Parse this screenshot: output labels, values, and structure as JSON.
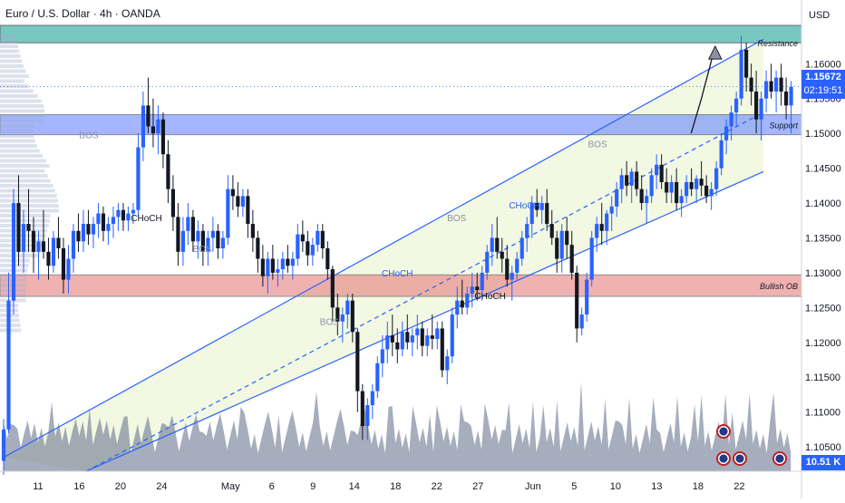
{
  "header": {
    "title": "Euro / U.S. Dollar · 4h · OANDA",
    "currency": "USD"
  },
  "price_tag": {
    "price": "1.15672",
    "countdown": "02:19:51"
  },
  "volume_tag": "10.51 K",
  "colors": {
    "resistance_zone": "#4db6ac",
    "support_zone": "#5b7cff",
    "bullish_ob_zone": "#e57373",
    "channel": "#2962ff",
    "up_candle": "#2962ff",
    "down_candle": "#131722",
    "volume": "#5c6a86",
    "label_blue": "#2962ff",
    "label_gray": "#8a93a6"
  },
  "chart_data": {
    "type": "candlestick",
    "y_axis": {
      "range": [
        1.1015,
        1.1655
      ],
      "ticks": [
        "1.16000",
        "1.15500",
        "1.15000",
        "1.14500",
        "1.14000",
        "1.13500",
        "1.13000",
        "1.12500",
        "1.12000",
        "1.11500",
        "1.11000",
        "1.10500"
      ],
      "tick_values": [
        1.16,
        1.155,
        1.15,
        1.145,
        1.14,
        1.135,
        1.13,
        1.125,
        1.12,
        1.115,
        1.11,
        1.105
      ]
    },
    "x_axis": {
      "ticks": [
        "11",
        "16",
        "20",
        "24",
        "May",
        "6",
        "9",
        "14",
        "18",
        "22",
        "27",
        "Jun",
        "5",
        "10",
        "13",
        "18",
        "22"
      ],
      "tick_bar_index": [
        10,
        22,
        34,
        46,
        66,
        78,
        90,
        102,
        114,
        126,
        138,
        154,
        166,
        178,
        190,
        202,
        214
      ]
    },
    "zones": [
      {
        "name": "Resistance",
        "from": 1.163,
        "to": 1.1655
      },
      {
        "name": "Support",
        "from": 1.1498,
        "to": 1.1527
      },
      {
        "name": "Bullish OB",
        "from": 1.1266,
        "to": 1.1297
      }
    ],
    "channel": {
      "upper": [
        [
          0,
          1.1035
        ],
        [
          221,
          1.1635
        ]
      ],
      "lower": [
        [
          24,
          1.1015
        ],
        [
          221,
          1.1445
        ]
      ],
      "mid_dashed": [
        [
          24,
          1.1015
        ],
        [
          221,
          1.153
        ]
      ]
    },
    "annotations": [
      {
        "text": "BOS",
        "bar": 22,
        "price": 1.1493,
        "style": "gray"
      },
      {
        "text": "CHoCH",
        "bar": 37,
        "price": 1.1374,
        "style": "dark"
      },
      {
        "text": "BOS",
        "bar": 55,
        "price": 1.133,
        "style": "gray"
      },
      {
        "text": "BOS",
        "bar": 92,
        "price": 1.1225,
        "style": "gray"
      },
      {
        "text": "CHoCH",
        "bar": 110,
        "price": 1.1295,
        "style": "blue"
      },
      {
        "text": "BOS",
        "bar": 129,
        "price": 1.1374,
        "style": "gray"
      },
      {
        "text": "CHoCH",
        "bar": 137,
        "price": 1.1262,
        "style": "dark"
      },
      {
        "text": "CHoCH",
        "bar": 147,
        "price": 1.1392,
        "style": "blue"
      },
      {
        "text": "BOS",
        "bar": 170,
        "price": 1.148,
        "style": "gray"
      }
    ],
    "projection": [
      [
        200,
        1.15
      ],
      [
        203,
        1.155
      ],
      [
        207,
        1.1625
      ]
    ],
    "candles": [
      [
        1.103,
        1.109,
        1.101,
        1.1075
      ],
      [
        1.1075,
        1.13,
        1.107,
        1.126
      ],
      [
        1.126,
        1.142,
        1.124,
        1.14
      ],
      [
        1.14,
        1.144,
        1.131,
        1.133
      ],
      [
        1.133,
        1.139,
        1.13,
        1.137
      ],
      [
        1.137,
        1.142,
        1.133,
        1.136
      ],
      [
        1.136,
        1.138,
        1.13,
        1.133
      ],
      [
        1.133,
        1.136,
        1.129,
        1.1345
      ],
      [
        1.1345,
        1.139,
        1.132,
        1.133
      ],
      [
        1.133,
        1.135,
        1.129,
        1.131
      ],
      [
        1.131,
        1.136,
        1.13,
        1.135
      ],
      [
        1.135,
        1.138,
        1.132,
        1.1335
      ],
      [
        1.1335,
        1.135,
        1.127,
        1.129
      ],
      [
        1.129,
        1.134,
        1.127,
        1.132
      ],
      [
        1.132,
        1.137,
        1.13,
        1.136
      ],
      [
        1.136,
        1.1385,
        1.133,
        1.1345
      ],
      [
        1.1345,
        1.139,
        1.133,
        1.137
      ],
      [
        1.137,
        1.139,
        1.134,
        1.1355
      ],
      [
        1.1355,
        1.138,
        1.1335,
        1.137
      ],
      [
        1.137,
        1.14,
        1.135,
        1.1385
      ],
      [
        1.1385,
        1.1395,
        1.1345,
        1.136
      ],
      [
        1.136,
        1.138,
        1.134,
        1.137
      ],
      [
        1.137,
        1.1395,
        1.135,
        1.138
      ],
      [
        1.138,
        1.14,
        1.136,
        1.139
      ],
      [
        1.139,
        1.14,
        1.136,
        1.1375
      ],
      [
        1.1375,
        1.1395,
        1.136,
        1.1385
      ],
      [
        1.1385,
        1.14,
        1.137,
        1.139
      ],
      [
        1.139,
        1.15,
        1.138,
        1.148
      ],
      [
        1.148,
        1.156,
        1.146,
        1.154
      ],
      [
        1.154,
        1.158,
        1.15,
        1.151
      ],
      [
        1.151,
        1.155,
        1.148,
        1.15
      ],
      [
        1.15,
        1.154,
        1.147,
        1.152
      ],
      [
        1.152,
        1.153,
        1.145,
        1.147
      ],
      [
        1.147,
        1.149,
        1.14,
        1.142
      ],
      [
        1.142,
        1.144,
        1.136,
        1.138
      ],
      [
        1.138,
        1.14,
        1.131,
        1.133
      ],
      [
        1.133,
        1.138,
        1.131,
        1.136
      ],
      [
        1.136,
        1.14,
        1.134,
        1.138
      ],
      [
        1.138,
        1.139,
        1.133,
        1.1345
      ],
      [
        1.1345,
        1.1375,
        1.132,
        1.136
      ],
      [
        1.136,
        1.137,
        1.131,
        1.133
      ],
      [
        1.133,
        1.136,
        1.131,
        1.135
      ],
      [
        1.135,
        1.138,
        1.133,
        1.136
      ],
      [
        1.136,
        1.137,
        1.132,
        1.1335
      ],
      [
        1.1335,
        1.136,
        1.132,
        1.135
      ],
      [
        1.135,
        1.144,
        1.134,
        1.142
      ],
      [
        1.142,
        1.144,
        1.139,
        1.141
      ],
      [
        1.141,
        1.143,
        1.138,
        1.1395
      ],
      [
        1.1395,
        1.142,
        1.138,
        1.141
      ],
      [
        1.141,
        1.142,
        1.135,
        1.137
      ],
      [
        1.137,
        1.139,
        1.133,
        1.135
      ],
      [
        1.135,
        1.136,
        1.13,
        1.132
      ],
      [
        1.132,
        1.134,
        1.128,
        1.1295
      ],
      [
        1.1295,
        1.133,
        1.127,
        1.132
      ],
      [
        1.132,
        1.134,
        1.129,
        1.13
      ],
      [
        1.13,
        1.132,
        1.128,
        1.1305
      ],
      [
        1.1305,
        1.133,
        1.129,
        1.132
      ],
      [
        1.132,
        1.134,
        1.13,
        1.131
      ],
      [
        1.131,
        1.133,
        1.129,
        1.132
      ],
      [
        1.132,
        1.137,
        1.131,
        1.1355
      ],
      [
        1.1355,
        1.1375,
        1.133,
        1.1345
      ],
      [
        1.1345,
        1.136,
        1.131,
        1.1325
      ],
      [
        1.1325,
        1.135,
        1.131,
        1.134
      ],
      [
        1.134,
        1.137,
        1.133,
        1.136
      ],
      [
        1.136,
        1.137,
        1.132,
        1.1335
      ],
      [
        1.1335,
        1.1345,
        1.129,
        1.1305
      ],
      [
        1.1305,
        1.131,
        1.123,
        1.125
      ],
      [
        1.125,
        1.127,
        1.121,
        1.123
      ],
      [
        1.123,
        1.125,
        1.12,
        1.124
      ],
      [
        1.124,
        1.127,
        1.122,
        1.126
      ],
      [
        1.126,
        1.127,
        1.12,
        1.1215
      ],
      [
        1.1215,
        1.122,
        1.11,
        1.113
      ],
      [
        1.113,
        1.114,
        1.106,
        1.108
      ],
      [
        1.108,
        1.112,
        1.106,
        1.111
      ],
      [
        1.111,
        1.114,
        1.109,
        1.113
      ],
      [
        1.113,
        1.118,
        1.112,
        1.117
      ],
      [
        1.117,
        1.121,
        1.115,
        1.119
      ],
      [
        1.119,
        1.123,
        1.117,
        1.121
      ],
      [
        1.121,
        1.124,
        1.118,
        1.12
      ],
      [
        1.12,
        1.122,
        1.117,
        1.119
      ],
      [
        1.119,
        1.123,
        1.118,
        1.1215
      ],
      [
        1.1215,
        1.124,
        1.119,
        1.12
      ],
      [
        1.12,
        1.122,
        1.118,
        1.121
      ],
      [
        1.121,
        1.124,
        1.119,
        1.122
      ],
      [
        1.122,
        1.123,
        1.118,
        1.1195
      ],
      [
        1.1195,
        1.122,
        1.118,
        1.121
      ],
      [
        1.121,
        1.124,
        1.119,
        1.1205
      ],
      [
        1.1205,
        1.123,
        1.119,
        1.122
      ],
      [
        1.122,
        1.123,
        1.115,
        1.116
      ],
      [
        1.116,
        1.119,
        1.114,
        1.118
      ],
      [
        1.118,
        1.125,
        1.117,
        1.124
      ],
      [
        1.124,
        1.128,
        1.122,
        1.126
      ],
      [
        1.126,
        1.129,
        1.124,
        1.125
      ],
      [
        1.125,
        1.128,
        1.124,
        1.127
      ],
      [
        1.127,
        1.13,
        1.125,
        1.128
      ],
      [
        1.128,
        1.13,
        1.126,
        1.1275
      ],
      [
        1.1275,
        1.131,
        1.126,
        1.13
      ],
      [
        1.13,
        1.134,
        1.129,
        1.133
      ],
      [
        1.133,
        1.137,
        1.131,
        1.135
      ],
      [
        1.135,
        1.138,
        1.132,
        1.133
      ],
      [
        1.133,
        1.135,
        1.13,
        1.132
      ],
      [
        1.132,
        1.134,
        1.128,
        1.129
      ],
      [
        1.129,
        1.131,
        1.126,
        1.13
      ],
      [
        1.13,
        1.133,
        1.129,
        1.132
      ],
      [
        1.132,
        1.136,
        1.131,
        1.135
      ],
      [
        1.135,
        1.138,
        1.133,
        1.137
      ],
      [
        1.137,
        1.141,
        1.135,
        1.14
      ],
      [
        1.14,
        1.142,
        1.138,
        1.139
      ],
      [
        1.139,
        1.141,
        1.137,
        1.14
      ],
      [
        1.14,
        1.142,
        1.136,
        1.137
      ],
      [
        1.137,
        1.139,
        1.134,
        1.135
      ],
      [
        1.135,
        1.136,
        1.13,
        1.132
      ],
      [
        1.132,
        1.137,
        1.13,
        1.136
      ],
      [
        1.136,
        1.138,
        1.132,
        1.134
      ],
      [
        1.134,
        1.136,
        1.129,
        1.13
      ],
      [
        1.13,
        1.131,
        1.12,
        1.122
      ],
      [
        1.122,
        1.125,
        1.121,
        1.124
      ],
      [
        1.124,
        1.13,
        1.123,
        1.129
      ],
      [
        1.129,
        1.136,
        1.128,
        1.135
      ],
      [
        1.135,
        1.138,
        1.133,
        1.137
      ],
      [
        1.137,
        1.14,
        1.134,
        1.136
      ],
      [
        1.136,
        1.139,
        1.134,
        1.1385
      ],
      [
        1.1385,
        1.141,
        1.136,
        1.1395
      ],
      [
        1.1395,
        1.143,
        1.138,
        1.142
      ],
      [
        1.142,
        1.145,
        1.14,
        1.144
      ],
      [
        1.144,
        1.146,
        1.141,
        1.1425
      ],
      [
        1.1425,
        1.145,
        1.14,
        1.1445
      ],
      [
        1.1445,
        1.146,
        1.141,
        1.142
      ],
      [
        1.142,
        1.144,
        1.139,
        1.14
      ],
      [
        1.14,
        1.142,
        1.137,
        1.141
      ],
      [
        1.141,
        1.145,
        1.14,
        1.144
      ],
      [
        1.144,
        1.147,
        1.142,
        1.1455
      ],
      [
        1.1455,
        1.147,
        1.142,
        1.143
      ],
      [
        1.143,
        1.145,
        1.14,
        1.1415
      ],
      [
        1.1415,
        1.144,
        1.14,
        1.143
      ],
      [
        1.143,
        1.145,
        1.139,
        1.14
      ],
      [
        1.14,
        1.142,
        1.138,
        1.141
      ],
      [
        1.141,
        1.144,
        1.14,
        1.143
      ],
      [
        1.143,
        1.145,
        1.141,
        1.142
      ],
      [
        1.142,
        1.144,
        1.14,
        1.1435
      ],
      [
        1.1435,
        1.146,
        1.141,
        1.1425
      ],
      [
        1.1425,
        1.144,
        1.14,
        1.141
      ],
      [
        1.141,
        1.143,
        1.139,
        1.142
      ],
      [
        1.142,
        1.146,
        1.141,
        1.145
      ],
      [
        1.145,
        1.15,
        1.144,
        1.149
      ],
      [
        1.149,
        1.152,
        1.147,
        1.151
      ],
      [
        1.151,
        1.154,
        1.149,
        1.153
      ],
      [
        1.153,
        1.156,
        1.151,
        1.155
      ],
      [
        1.155,
        1.164,
        1.154,
        1.162
      ],
      [
        1.162,
        1.163,
        1.156,
        1.158
      ],
      [
        1.158,
        1.16,
        1.154,
        1.156
      ],
      [
        1.156,
        1.159,
        1.15,
        1.152
      ],
      [
        1.152,
        1.156,
        1.149,
        1.155
      ],
      [
        1.155,
        1.159,
        1.153,
        1.1575
      ],
      [
        1.1575,
        1.16,
        1.155,
        1.156
      ],
      [
        1.156,
        1.159,
        1.153,
        1.158
      ],
      [
        1.158,
        1.16,
        1.154,
        1.156
      ],
      [
        1.156,
        1.158,
        1.152,
        1.154
      ],
      [
        1.154,
        1.1575,
        1.15,
        1.1567
      ]
    ]
  }
}
